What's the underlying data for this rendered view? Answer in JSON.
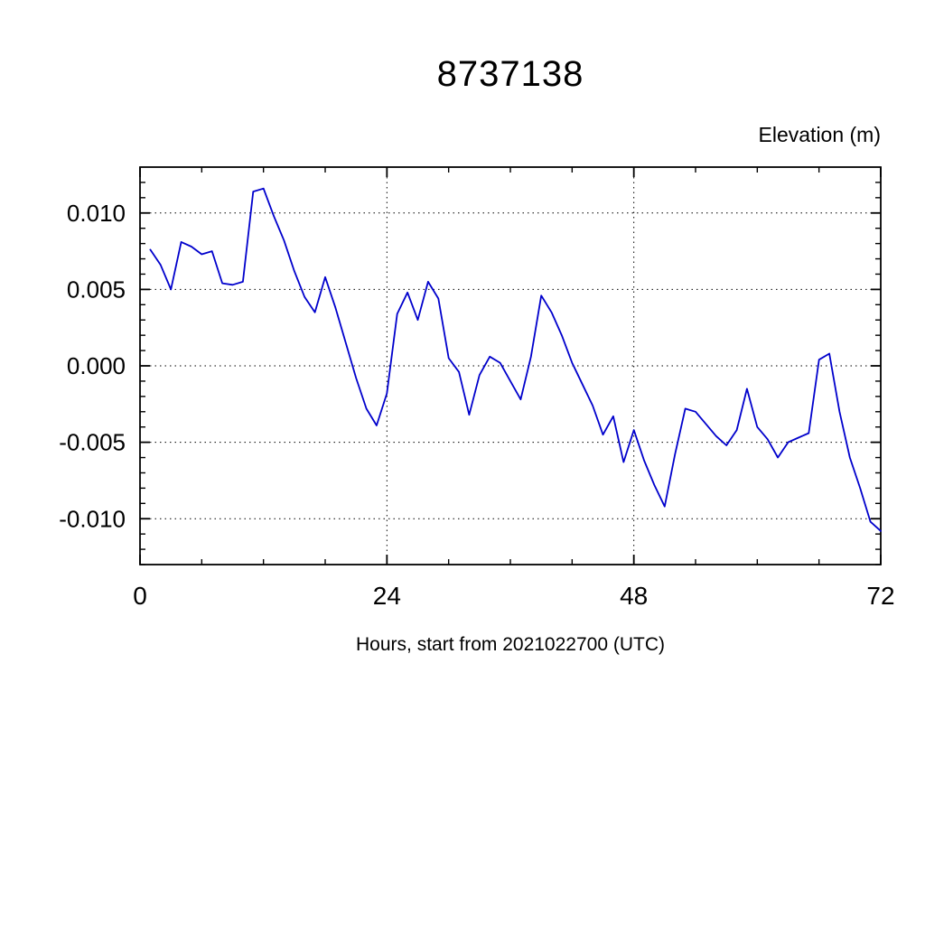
{
  "title": "8737138",
  "ylabel": "Elevation (m)",
  "xlabel": "Hours, start from 2021022700 (UTC)",
  "chart_data": {
    "type": "line",
    "title": "8737138",
    "xlabel": "Hours, start from 2021022700 (UTC)",
    "ylabel": "Elevation (m)",
    "xlim": [
      0,
      72
    ],
    "ylim": [
      -0.013,
      0.013
    ],
    "x_ticks": [
      0,
      24,
      48,
      72
    ],
    "x_tick_labels": [
      "0",
      "24",
      "48",
      "72"
    ],
    "x_minor_step": 6,
    "y_ticks": [
      0.01,
      0.005,
      0.0,
      -0.005,
      -0.01
    ],
    "y_tick_labels": [
      "0.010",
      "0.005",
      "0.000",
      "-0.005",
      "-0.010"
    ],
    "y_minor_step": 0.001,
    "grid": true,
    "line_color": "#0000cc",
    "series": [
      {
        "name": "elevation",
        "x": [
          1,
          2,
          3,
          4,
          5,
          6,
          7,
          8,
          9,
          10,
          11,
          12,
          13,
          14,
          15,
          16,
          17,
          18,
          19,
          20,
          21,
          22,
          23,
          24,
          25,
          26,
          27,
          28,
          29,
          30,
          31,
          32,
          33,
          34,
          35,
          36,
          37,
          38,
          39,
          40,
          41,
          42,
          43,
          44,
          45,
          46,
          47,
          48,
          49,
          50,
          51,
          52,
          53,
          54,
          55,
          56,
          57,
          58,
          59,
          60,
          61,
          62,
          63,
          64,
          65,
          66,
          67,
          68,
          69,
          70,
          71,
          72
        ],
        "y": [
          0.0076,
          0.0066,
          0.005,
          0.0081,
          0.0078,
          0.0073,
          0.0075,
          0.0054,
          0.0053,
          0.0055,
          0.0114,
          0.0116,
          0.0098,
          0.0082,
          0.0062,
          0.0045,
          0.0035,
          0.0058,
          0.0038,
          0.0015,
          -0.0008,
          -0.0028,
          -0.0039,
          -0.0018,
          0.0034,
          0.0048,
          0.003,
          0.0055,
          0.0044,
          0.0005,
          -0.0004,
          -0.0032,
          -0.0006,
          0.0006,
          0.0002,
          -0.001,
          -0.0022,
          0.0006,
          0.0046,
          0.0035,
          0.002,
          0.0002,
          -0.0012,
          -0.0026,
          -0.0045,
          -0.0033,
          -0.0063,
          -0.0042,
          -0.0062,
          -0.0078,
          -0.0092,
          -0.0058,
          -0.0028,
          -0.003,
          -0.0038,
          -0.0046,
          -0.0052,
          -0.0042,
          -0.0015,
          -0.004,
          -0.0048,
          -0.006,
          -0.005,
          -0.0047,
          -0.0044,
          0.0004,
          0.0008,
          -0.003,
          -0.006,
          -0.008,
          -0.0102,
          -0.0108
        ]
      }
    ]
  }
}
